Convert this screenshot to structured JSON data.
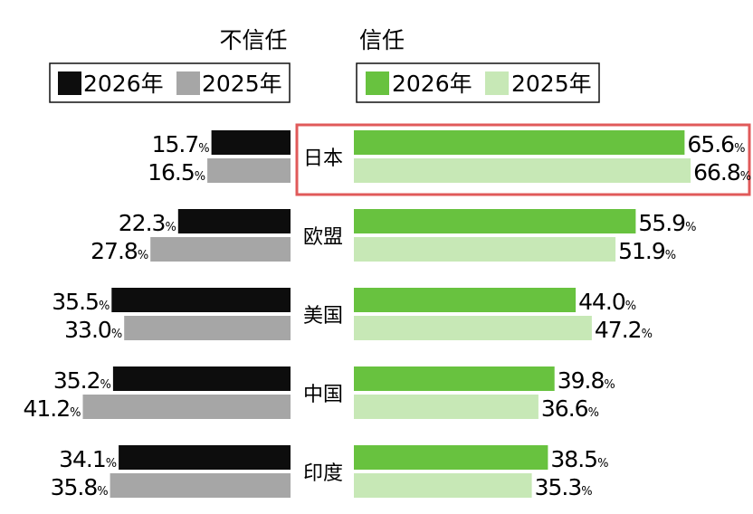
{
  "chart_data": {
    "type": "bar",
    "headers": {
      "left": "不信任",
      "right": "信任"
    },
    "percent_sign": "%",
    "categories": [
      "日本",
      "欧盟",
      "美国",
      "中国",
      "印度"
    ],
    "highlight_category": "日本",
    "legend": {
      "left": [
        {
          "label": "2026年",
          "color": "#0d0d0d"
        },
        {
          "label": "2025年",
          "color": "#a6a6a6"
        }
      ],
      "right": [
        {
          "label": "2026年",
          "color": "#68c23f"
        },
        {
          "label": "2025年",
          "color": "#c7e8b6"
        }
      ]
    },
    "series": [
      {
        "name": "不信任 2026年",
        "group": "left",
        "color": "#0d0d0d",
        "values": [
          "15.7",
          "22.3",
          "35.5",
          "35.2",
          "34.1"
        ]
      },
      {
        "name": "不信任 2025年",
        "group": "left",
        "color": "#a6a6a6",
        "values": [
          "16.5",
          "27.8",
          "33.0",
          "41.2",
          "35.8"
        ]
      },
      {
        "name": "信任 2026年",
        "group": "right",
        "color": "#68c23f",
        "values": [
          "65.6",
          "55.9",
          "44.0",
          "39.8",
          "38.5"
        ]
      },
      {
        "name": "信任 2025年",
        "group": "right",
        "color": "#c7e8b6",
        "values": [
          "66.8",
          "51.9",
          "47.2",
          "36.6",
          "35.3"
        ]
      }
    ],
    "highlight_color": "#e05a5a"
  }
}
